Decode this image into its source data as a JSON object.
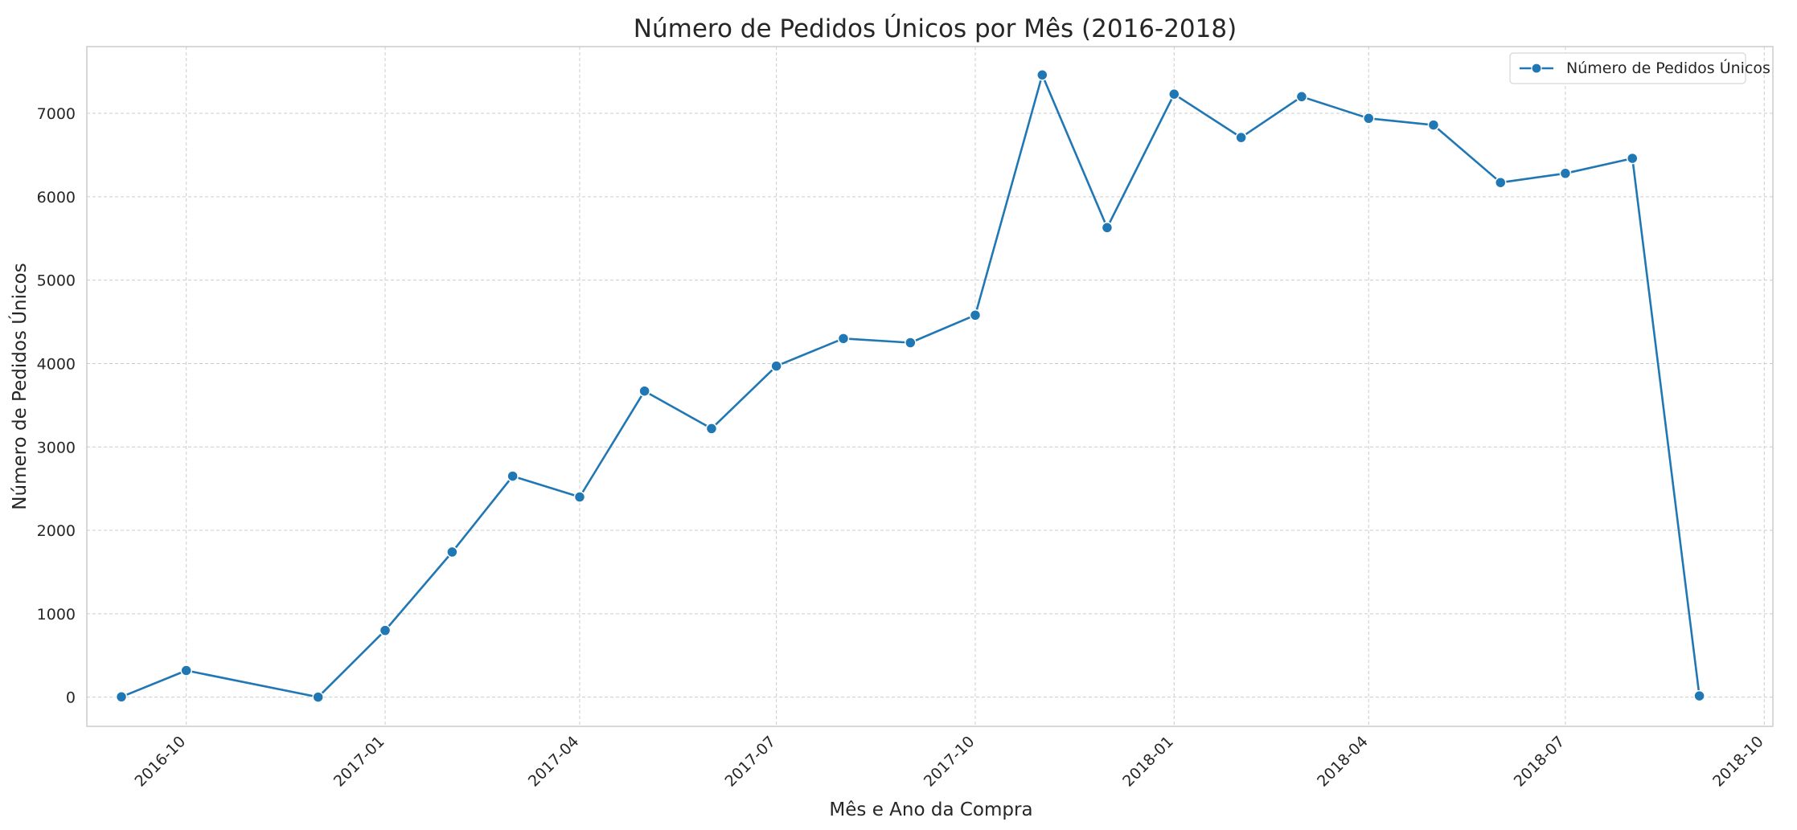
{
  "chart_data": {
    "type": "line",
    "title": "Número de Pedidos Únicos por Mês (2016-2018)",
    "xlabel": "Mês e Ano da Compra",
    "ylabel": "Número de Pedidos Únicos",
    "ylim": [
      -350,
      7800
    ],
    "yticks": [
      0,
      1000,
      2000,
      3000,
      4000,
      5000,
      6000,
      7000
    ],
    "xlim": [
      "2016-08-16",
      "2018-10-05"
    ],
    "xticks": [
      "2016-10",
      "2017-01",
      "2017-04",
      "2017-07",
      "2017-10",
      "2018-01",
      "2018-04",
      "2018-07",
      "2018-10"
    ],
    "grid": true,
    "legend": {
      "placement": "top-right",
      "entries": [
        "Número de Pedidos Únicos"
      ]
    },
    "color": "#1f77b4",
    "series": [
      {
        "name": "Número de Pedidos Únicos",
        "x": [
          "2016-09-01",
          "2016-10-01",
          "2016-12-01",
          "2017-01-01",
          "2017-02-01",
          "2017-03-01",
          "2017-04-01",
          "2017-05-01",
          "2017-06-01",
          "2017-07-01",
          "2017-08-01",
          "2017-09-01",
          "2017-10-01",
          "2017-11-01",
          "2017-12-01",
          "2018-01-01",
          "2018-02-01",
          "2018-03-01",
          "2018-04-01",
          "2018-05-01",
          "2018-06-01",
          "2018-07-01",
          "2018-08-01",
          "2018-09-01"
        ],
        "values": [
          4,
          320,
          1,
          800,
          1740,
          2650,
          2400,
          3670,
          3220,
          3970,
          4300,
          4250,
          4580,
          7460,
          5630,
          7230,
          6710,
          7200,
          6940,
          6860,
          6170,
          6280,
          6460,
          15
        ]
      }
    ]
  }
}
